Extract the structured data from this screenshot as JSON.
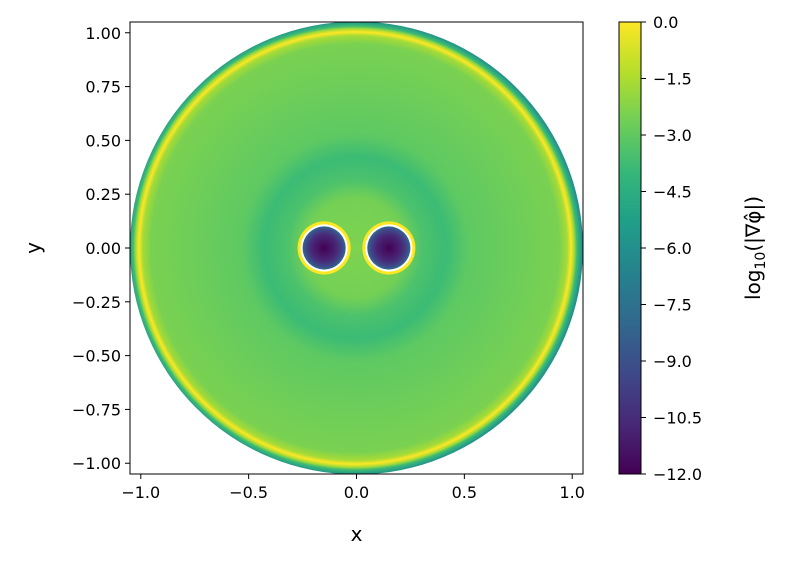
{
  "chart_data": {
    "type": "heatmap",
    "xlabel": "x",
    "ylabel": "y",
    "xlim": [
      -1.05,
      1.05
    ],
    "ylim": [
      -1.05,
      1.05
    ],
    "x_ticks": [
      "−1.0",
      "−0.5",
      "0.0",
      "0.5",
      "1.0"
    ],
    "x_tick_values": [
      -1.0,
      -0.5,
      0.0,
      0.5,
      1.0
    ],
    "y_ticks": [
      "1.00",
      "0.75",
      "0.50",
      "0.25",
      "0.00",
      "−0.25",
      "−0.50",
      "−0.75",
      "−1.00"
    ],
    "y_tick_values": [
      1.0,
      0.75,
      0.5,
      0.25,
      0.0,
      -0.25,
      -0.5,
      -0.75,
      -1.0
    ],
    "grid": false,
    "domain": {
      "outer_circle": {
        "center": [
          0.0,
          0.0
        ],
        "radius": 1.05
      },
      "holes": [
        {
          "center": [
            -0.15,
            0.0
          ],
          "radius": 0.1
        },
        {
          "center": [
            0.15,
            0.0
          ],
          "radius": 0.1
        }
      ]
    },
    "colorbar": {
      "label_prefix": "log",
      "label_subscript": "10",
      "label_body": "(|∇φ̂|)",
      "min": -12.0,
      "max": 0.0,
      "colormap": "viridis",
      "ticks": [
        "0.0",
        "−1.5",
        "−3.0",
        "−4.5",
        "−6.0",
        "−7.5",
        "−9.0",
        "−10.5",
        "−12.0"
      ],
      "tick_values": [
        0.0,
        -1.5,
        -3.0,
        -4.5,
        -6.0,
        -7.5,
        -9.0,
        -10.5,
        -12.0
      ]
    }
  }
}
